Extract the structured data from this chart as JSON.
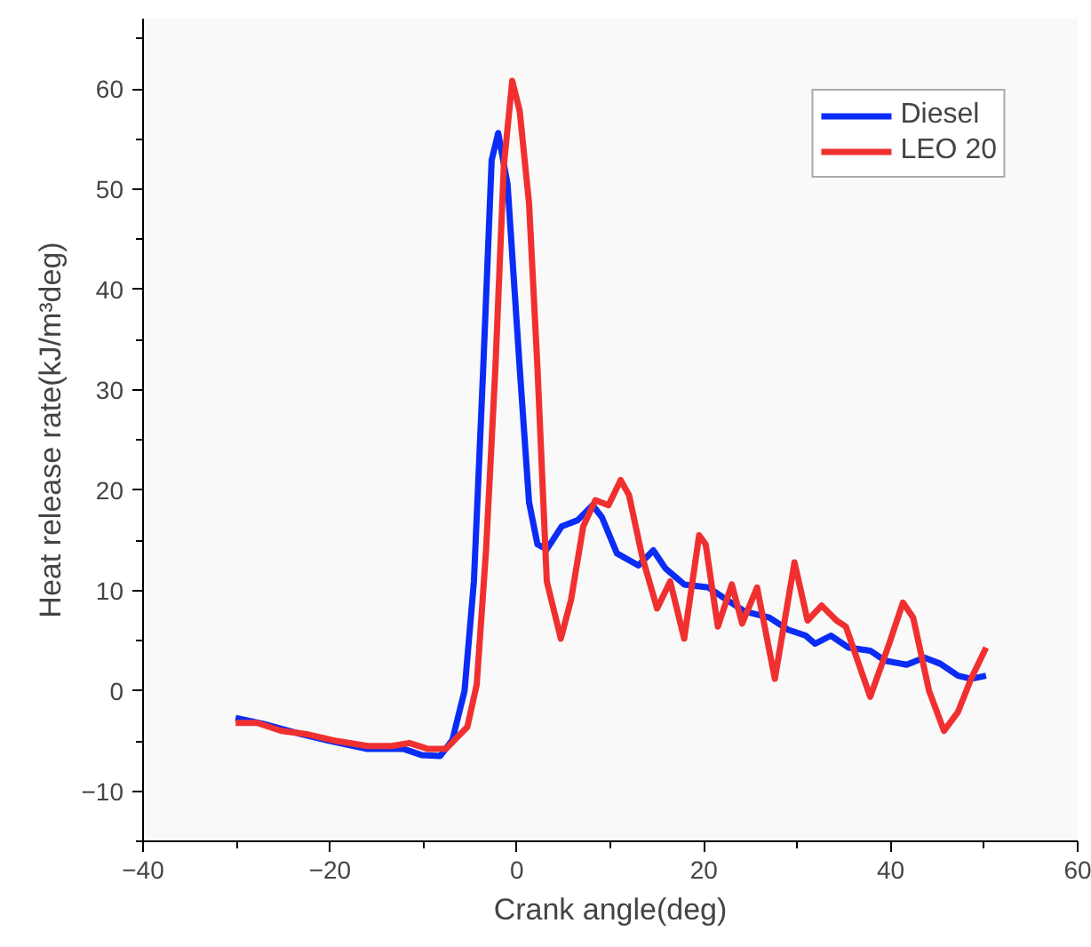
{
  "chart_data": {
    "type": "line",
    "xlabel": "Crank angle(deg)",
    "ylabel": "Heat release rate(kJ/m³deg)",
    "xlim": [
      -40,
      60
    ],
    "xticks": [
      -40,
      -20,
      0,
      20,
      40,
      60
    ],
    "ylim": [
      -15,
      67
    ],
    "yticks": [
      -10,
      0,
      10,
      20,
      30,
      40,
      50,
      60
    ],
    "grid": false,
    "legend": "top right",
    "line_style": "solid",
    "series": [
      {
        "name": "Diesel",
        "color": "#0a2cf5",
        "x": [
          -30.1,
          -27.1,
          -23.2,
          -20,
          -16,
          -12.1,
          -10.2,
          -8.2,
          -6.9,
          -5.6,
          -4.6,
          -3.6,
          -2.7,
          -2.0,
          -1.0,
          0.3,
          1.3,
          2.2,
          3.2,
          4.8,
          6.5,
          8.1,
          9.1,
          10.7,
          13.0,
          14.6,
          15.9,
          17.9,
          20.5,
          22.4,
          24.4,
          27.0,
          29.0,
          30.9,
          31.9,
          33.6,
          35.5,
          37.8,
          39.4,
          41.7,
          43.6,
          45.3,
          47.2,
          48.6,
          50.2
        ],
        "values": [
          -2.7,
          -3.3,
          -4.3,
          -5.0,
          -5.8,
          -5.8,
          -6.4,
          -6.5,
          -4.9,
          0,
          10.9,
          32.2,
          52.9,
          55.6,
          50.5,
          32.2,
          18.8,
          14.6,
          14.1,
          16.4,
          17.0,
          18.5,
          17.3,
          13.7,
          12.5,
          14.0,
          12.2,
          10.6,
          10.3,
          9.1,
          7.9,
          7.3,
          6.1,
          5.5,
          4.7,
          5.5,
          4.3,
          4.0,
          3.0,
          2.6,
          3.3,
          2.7,
          1.5,
          1.2,
          1.5
        ]
      },
      {
        "name": "LEO 20",
        "color": "#f03030",
        "x": [
          -30.1,
          -27.8,
          -25.2,
          -22.6,
          -19.3,
          -16,
          -13.4,
          -11.5,
          -9.5,
          -7.6,
          -5.3,
          -4.3,
          -3.3,
          -2.3,
          -1.4,
          -0.5,
          0.3,
          1.3,
          2.2,
          3.2,
          4.7,
          5.8,
          7.1,
          8.4,
          9.8,
          11.1,
          12.0,
          13.4,
          15.0,
          16.4,
          17.9,
          19.5,
          20.2,
          21.5,
          23.0,
          24.1,
          25.7,
          27.6,
          29.7,
          31.1,
          32.6,
          34.2,
          35.2,
          37.8,
          39.8,
          41.3,
          42.4,
          44.1,
          45.7,
          47.2,
          48.6,
          50.2
        ],
        "values": [
          -3.2,
          -3.2,
          -4.0,
          -4.3,
          -5.0,
          -5.5,
          -5.5,
          -5.2,
          -5.8,
          -5.8,
          -3.6,
          0.6,
          14,
          32.2,
          52.3,
          60.8,
          57.8,
          48.6,
          32.2,
          10.9,
          5.2,
          9.1,
          16.4,
          19.0,
          18.5,
          21.0,
          19.5,
          13.4,
          8.2,
          10.9,
          5.2,
          15.5,
          14.6,
          6.4,
          10.6,
          6.7,
          10.3,
          1.2,
          12.8,
          7.0,
          8.5,
          7.0,
          6.4,
          -0.6,
          4.6,
          8.8,
          7.3,
          0.0,
          -4.0,
          -2.1,
          1.2,
          4.3
        ]
      }
    ]
  }
}
